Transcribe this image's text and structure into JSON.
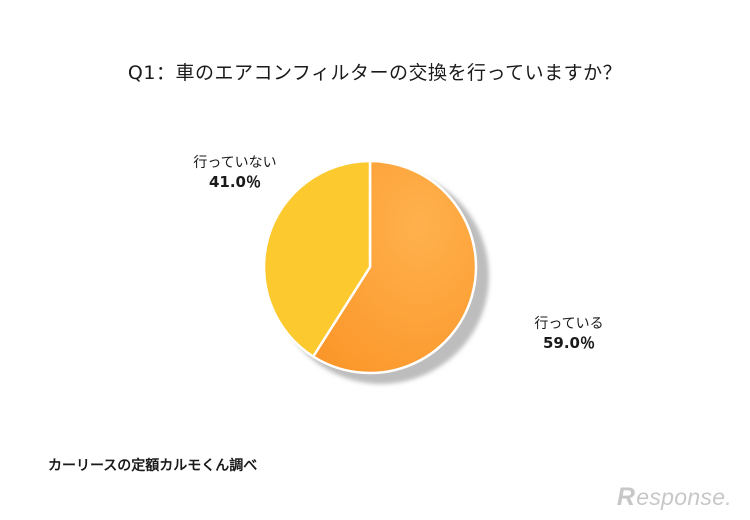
{
  "title": "Q1：車のエアコンフィルターの交換を行っていますか？",
  "chart_data": {
    "type": "pie",
    "title": "Q1：車のエアコンフィルターの交換を行っていますか？",
    "slices": [
      {
        "label": "行っている",
        "value": 59.0,
        "value_text": "59.0％",
        "color": "#fca031"
      },
      {
        "label": "行っていない",
        "value": 41.0,
        "value_text": "41.0％",
        "color": "#fcc92f"
      }
    ],
    "start": "12 o'clock",
    "direction": "clockwise"
  },
  "source": "カーリースの定額カルモくん調べ",
  "logo": {
    "mark": "R",
    "text": "esponse."
  }
}
